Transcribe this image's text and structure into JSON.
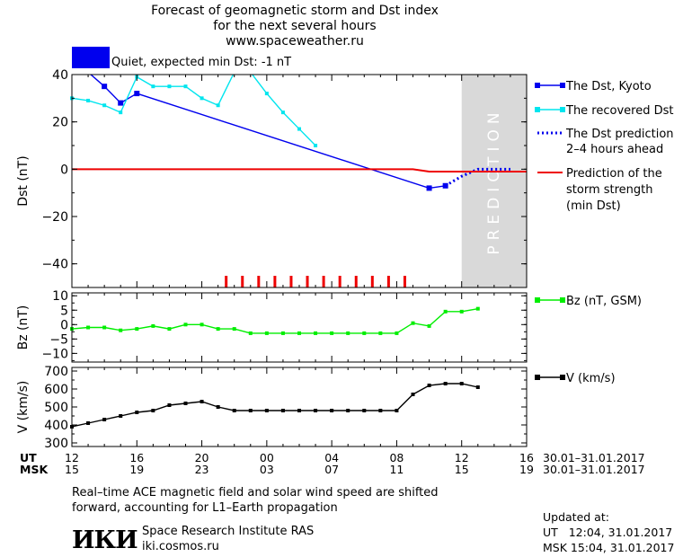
{
  "header": {
    "title_line1": "Forecast of geomagnetic storm and Dst index",
    "title_line2": "for the next several hours",
    "title_line3": "www.spaceweather.ru"
  },
  "status": {
    "level_color": "#0000ee",
    "text": "Quiet, expected min Dst: -1 nT"
  },
  "colors": {
    "dst_kyoto": "#0000ee",
    "dst_recovered": "#00e5ee",
    "dst_prediction": "#0000ee",
    "storm_strength": "#ee0000",
    "bz": "#00ee00",
    "speed": "#000000",
    "prediction_band": "#d9d9d9",
    "ticks_red": "#ee0000"
  },
  "legend": {
    "dst_kyoto": "The Dst, Kyoto",
    "dst_recovered": "The recovered Dst",
    "dst_prediction_l1": "The Dst prediction",
    "dst_prediction_l2": "2–4 hours ahead",
    "storm_l1": "Prediction of the",
    "storm_l2": "storm strength",
    "storm_l3": "(min Dst)",
    "bz": "Bz (nT, GSM)",
    "speed": "V (km/s)"
  },
  "time_axis": {
    "ut_label": "UT",
    "msk_label": "MSK",
    "ut_ticks": [
      "12",
      "16",
      "20",
      "00",
      "04",
      "08",
      "12",
      "16"
    ],
    "msk_ticks": [
      "15",
      "19",
      "23",
      "03",
      "07",
      "11",
      "15",
      "19"
    ],
    "date_range_ut": "30.01–31.01.2017",
    "date_range_msk": "30.01–31.01.2017"
  },
  "prediction_label": "PREDICTION",
  "footer": {
    "note_l1": "Real–time ACE magnetic field and solar wind speed are shifted",
    "note_l2": "forward, accounting for L1–Earth propagation",
    "logo": "ИКИ",
    "institute": "Space Research Institute RAS",
    "site": "iki.cosmos.ru",
    "updated_label": "Updated at:",
    "updated_ut": "UT   12:04, 31.01.2017",
    "updated_msk": "MSK 15:04, 31.01.2017"
  },
  "chart_data": [
    {
      "type": "line",
      "x_unit": "hours since 30.01.2017 12:00 UT",
      "ylabel": "Dst (nT)",
      "xlim": [
        0,
        28
      ],
      "ylim": [
        -50,
        40
      ],
      "yticks": [
        40,
        20,
        0,
        -20,
        -40
      ],
      "prediction_region": [
        24,
        28
      ],
      "storm_ticks_x": [
        9.5,
        10.5,
        11.5,
        12.5,
        13.5,
        14.5,
        15.5,
        16.5,
        17.5,
        18.5,
        19.5,
        20.5
      ],
      "series": [
        {
          "name": "The Dst, Kyoto",
          "key": "dst_kyoto",
          "style": "solid-square",
          "x": [
            1,
            2,
            3,
            4,
            22,
            23
          ],
          "y": [
            41,
            35,
            28,
            32,
            -8,
            -7
          ]
        },
        {
          "name": "The recovered Dst",
          "key": "dst_recovered",
          "style": "solid-square",
          "x": [
            0,
            1,
            2,
            3,
            4,
            5,
            6,
            7,
            8,
            9,
            10,
            11,
            12,
            13,
            14,
            15
          ],
          "y": [
            30,
            29,
            27,
            24,
            39,
            35,
            35,
            35,
            30,
            27,
            41,
            41,
            32,
            24,
            17,
            10
          ]
        },
        {
          "name": "The Dst prediction 2–4 hours ahead",
          "key": "dst_prediction",
          "style": "dotted",
          "x": [
            23,
            24,
            25,
            26,
            27
          ],
          "y": [
            -7,
            -3,
            0,
            0,
            0
          ]
        },
        {
          "name": "Prediction of the storm strength (min Dst)",
          "key": "storm_strength",
          "style": "solid",
          "x": [
            0,
            21,
            22,
            23,
            24,
            28
          ],
          "y": [
            0,
            0,
            -1,
            -1,
            -1,
            -1
          ]
        }
      ]
    },
    {
      "type": "line",
      "x_unit": "hours since 30.01.2017 12:00 UT",
      "ylabel": "Bz (nT)",
      "xlim": [
        0,
        28
      ],
      "ylim": [
        -13,
        11
      ],
      "yticks": [
        10,
        5,
        0,
        -5,
        -10
      ],
      "series": [
        {
          "name": "Bz (nT, GSM)",
          "key": "bz",
          "x": [
            0,
            1,
            2,
            3,
            4,
            5,
            6,
            7,
            8,
            9,
            10,
            11,
            12,
            13,
            14,
            15,
            16,
            17,
            18,
            19,
            20,
            21,
            22,
            23,
            24,
            25
          ],
          "y": [
            -1.5,
            -1,
            -1,
            -2,
            -1.5,
            -0.5,
            -1.5,
            0,
            0,
            -1.5,
            -1.5,
            -3,
            -3,
            -3,
            -3,
            -3,
            -3,
            -3,
            -3,
            -3,
            -3,
            0.5,
            -0.5,
            4.5,
            4.5,
            5.5
          ]
        }
      ]
    },
    {
      "type": "line",
      "x_unit": "hours since 30.01.2017 12:00 UT",
      "ylabel": "V (km/s)",
      "xlim": [
        0,
        28
      ],
      "ylim": [
        280,
        720
      ],
      "yticks": [
        700,
        600,
        500,
        400,
        300
      ],
      "series": [
        {
          "name": "V (km/s)",
          "key": "speed",
          "x": [
            0,
            1,
            2,
            3,
            4,
            5,
            6,
            7,
            8,
            9,
            10,
            11,
            12,
            13,
            14,
            15,
            16,
            17,
            18,
            19,
            20,
            21,
            22,
            23,
            24,
            25
          ],
          "y": [
            390,
            410,
            430,
            450,
            470,
            480,
            510,
            520,
            530,
            500,
            480,
            480,
            480,
            480,
            480,
            480,
            480,
            480,
            480,
            480,
            480,
            570,
            620,
            630,
            630,
            610
          ]
        }
      ]
    }
  ]
}
